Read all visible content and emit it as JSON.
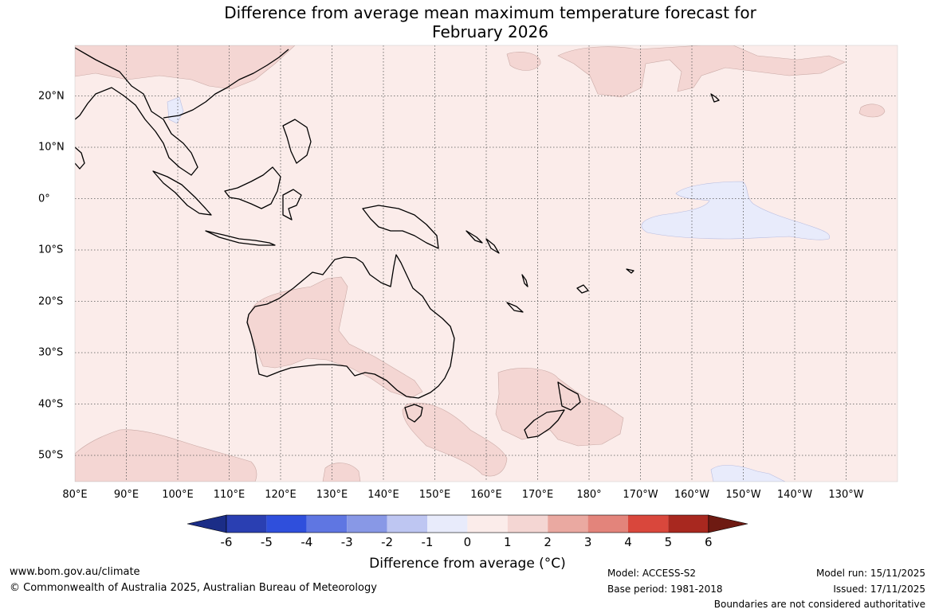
{
  "title_line1": "Difference from average mean maximum temperature forecast for",
  "title_line2": "February 2026",
  "lon_labels": [
    "80°E",
    "90°E",
    "100°E",
    "110°E",
    "120°E",
    "130°E",
    "140°E",
    "150°E",
    "160°E",
    "170°E",
    "180°",
    "170°W",
    "160°W",
    "150°W",
    "140°W",
    "130°W"
  ],
  "lat_labels": [
    "20°N",
    "10°N",
    "0°",
    "10°S",
    "20°S",
    "30°S",
    "40°S",
    "50°S"
  ],
  "colorbar": {
    "title": "Difference from average (°C)",
    "ticks": [
      "-6",
      "-5",
      "-4",
      "-3",
      "-2",
      "-1",
      "0",
      "1",
      "2",
      "3",
      "4",
      "5",
      "6"
    ],
    "colors": [
      "#1b2d87",
      "#2a3fb2",
      "#2f4fdc",
      "#5f76e2",
      "#8898e6",
      "#bec6f2",
      "#e8ebfb",
      "#fbecea",
      "#f4d6d3",
      "#eaa9a1",
      "#e3847b",
      "#d9473c",
      "#a8281f",
      "#6e1a12"
    ]
  },
  "footer": {
    "website": "www.bom.gov.au/climate",
    "copyright": "© Commonwealth of Australia 2025, Australian Bureau of Meteorology",
    "model": "Model: ACCESS-S2",
    "base_period": "Base period: 1981-2018",
    "model_run": "Model run: 15/11/2025",
    "issued": "Issued: 17/11/2025",
    "disclaimer": "Boundaries are not considered authoritative"
  }
}
